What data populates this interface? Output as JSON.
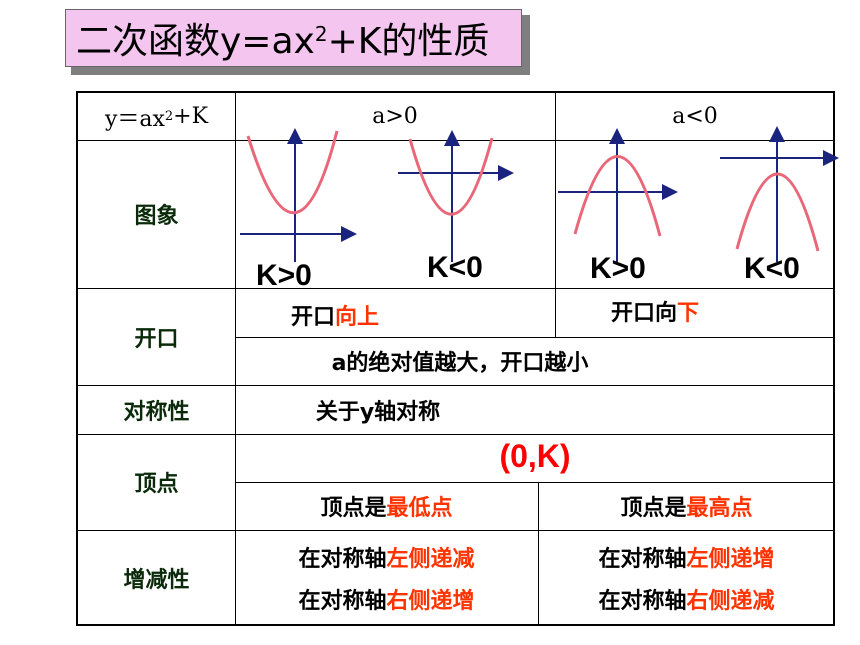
{
  "title": {
    "prefix": "二次函数y=ax",
    "exp": "2",
    "suffix": "+K的性质"
  },
  "header": {
    "col0_prefix": "y＝ax",
    "col0_exp": "2",
    "col0_suffix": "+K",
    "col_pos": "a>0",
    "col_neg": "a<0"
  },
  "rows": {
    "graph": {
      "label": "图象",
      "k_labels": [
        "K>0",
        "K<0",
        "K>0",
        "K<0"
      ]
    },
    "opening": {
      "label": "开口",
      "pos_prefix": "开口",
      "pos_dir": "向上",
      "neg_prefix": "开口向",
      "neg_dir": "下",
      "rule": "a的绝对值越大，开口越小"
    },
    "symmetry": {
      "label": "对称性",
      "text": "关于y轴对称"
    },
    "vertex": {
      "label": "顶点",
      "coord": "(0,K)",
      "pos_prefix": "顶点是",
      "pos_type": "最低点",
      "neg_prefix": "顶点是",
      "neg_type": "最高点"
    },
    "monotonic": {
      "label": "增减性",
      "pos": [
        {
          "prefix": "在对称轴",
          "side": "左侧递减"
        },
        {
          "prefix": "在对称轴",
          "side": "右侧递增"
        }
      ],
      "neg": [
        {
          "prefix": "在对称轴",
          "side": "左侧递增"
        },
        {
          "prefix": "在对称轴",
          "side": "右侧递减"
        }
      ]
    }
  },
  "colors": {
    "parabola": "#e8687a",
    "axis": "#1a237e",
    "accent": "#ff3300",
    "title_bg": "#f4c6ef"
  }
}
